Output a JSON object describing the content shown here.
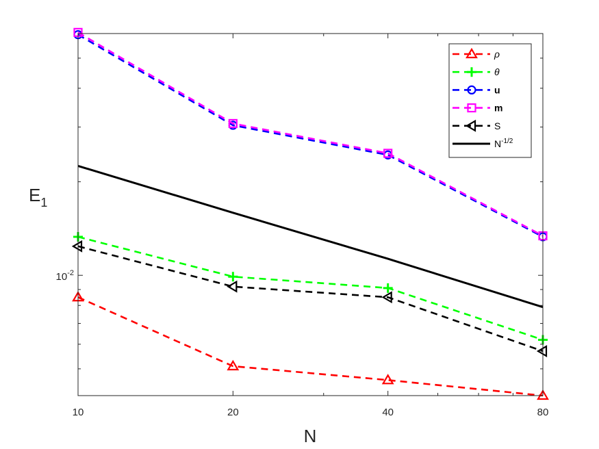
{
  "chart_data": {
    "type": "line",
    "title": "",
    "xlabel": "N",
    "ylabel": "E",
    "ylabel_sub": "1",
    "x_scale": "log",
    "y_scale": "log",
    "x": [
      10,
      20,
      40,
      80
    ],
    "x_ticks": [
      "10",
      "20",
      "40",
      "80"
    ],
    "y_tick_base": "10",
    "y_tick_exp": "-2",
    "xlim": [
      10,
      80
    ],
    "ylim": [
      0.0041,
      0.06
    ],
    "grid": false,
    "legend_position": "top-right",
    "series": [
      {
        "name": "ρ",
        "values": [
          0.0085,
          0.0051,
          0.0046,
          0.0041
        ],
        "color": "#ff0000",
        "style": "dashed",
        "marker": "triangle-up"
      },
      {
        "name": "θ",
        "values": [
          0.0133,
          0.0099,
          0.0091,
          0.0062
        ],
        "color": "#00ff00",
        "style": "dashed",
        "marker": "plus"
      },
      {
        "name": "u",
        "values": [
          0.0595,
          0.0304,
          0.0244,
          0.0133
        ],
        "color": "#0000ff",
        "style": "dashed",
        "marker": "circle"
      },
      {
        "name": "m",
        "values": [
          0.0605,
          0.0308,
          0.0247,
          0.0134
        ],
        "color": "#ff00ff",
        "style": "dashed",
        "marker": "square"
      },
      {
        "name": "S",
        "values": [
          0.0124,
          0.0092,
          0.0085,
          0.0057
        ],
        "color": "#000000",
        "style": "dashed",
        "marker": "triangle-left"
      },
      {
        "name": "N",
        "name_sup": "-1/2",
        "values": [
          0.0225,
          0.0159,
          0.0113,
          0.0079
        ],
        "color": "#000000",
        "style": "solid",
        "marker": "none"
      }
    ]
  }
}
